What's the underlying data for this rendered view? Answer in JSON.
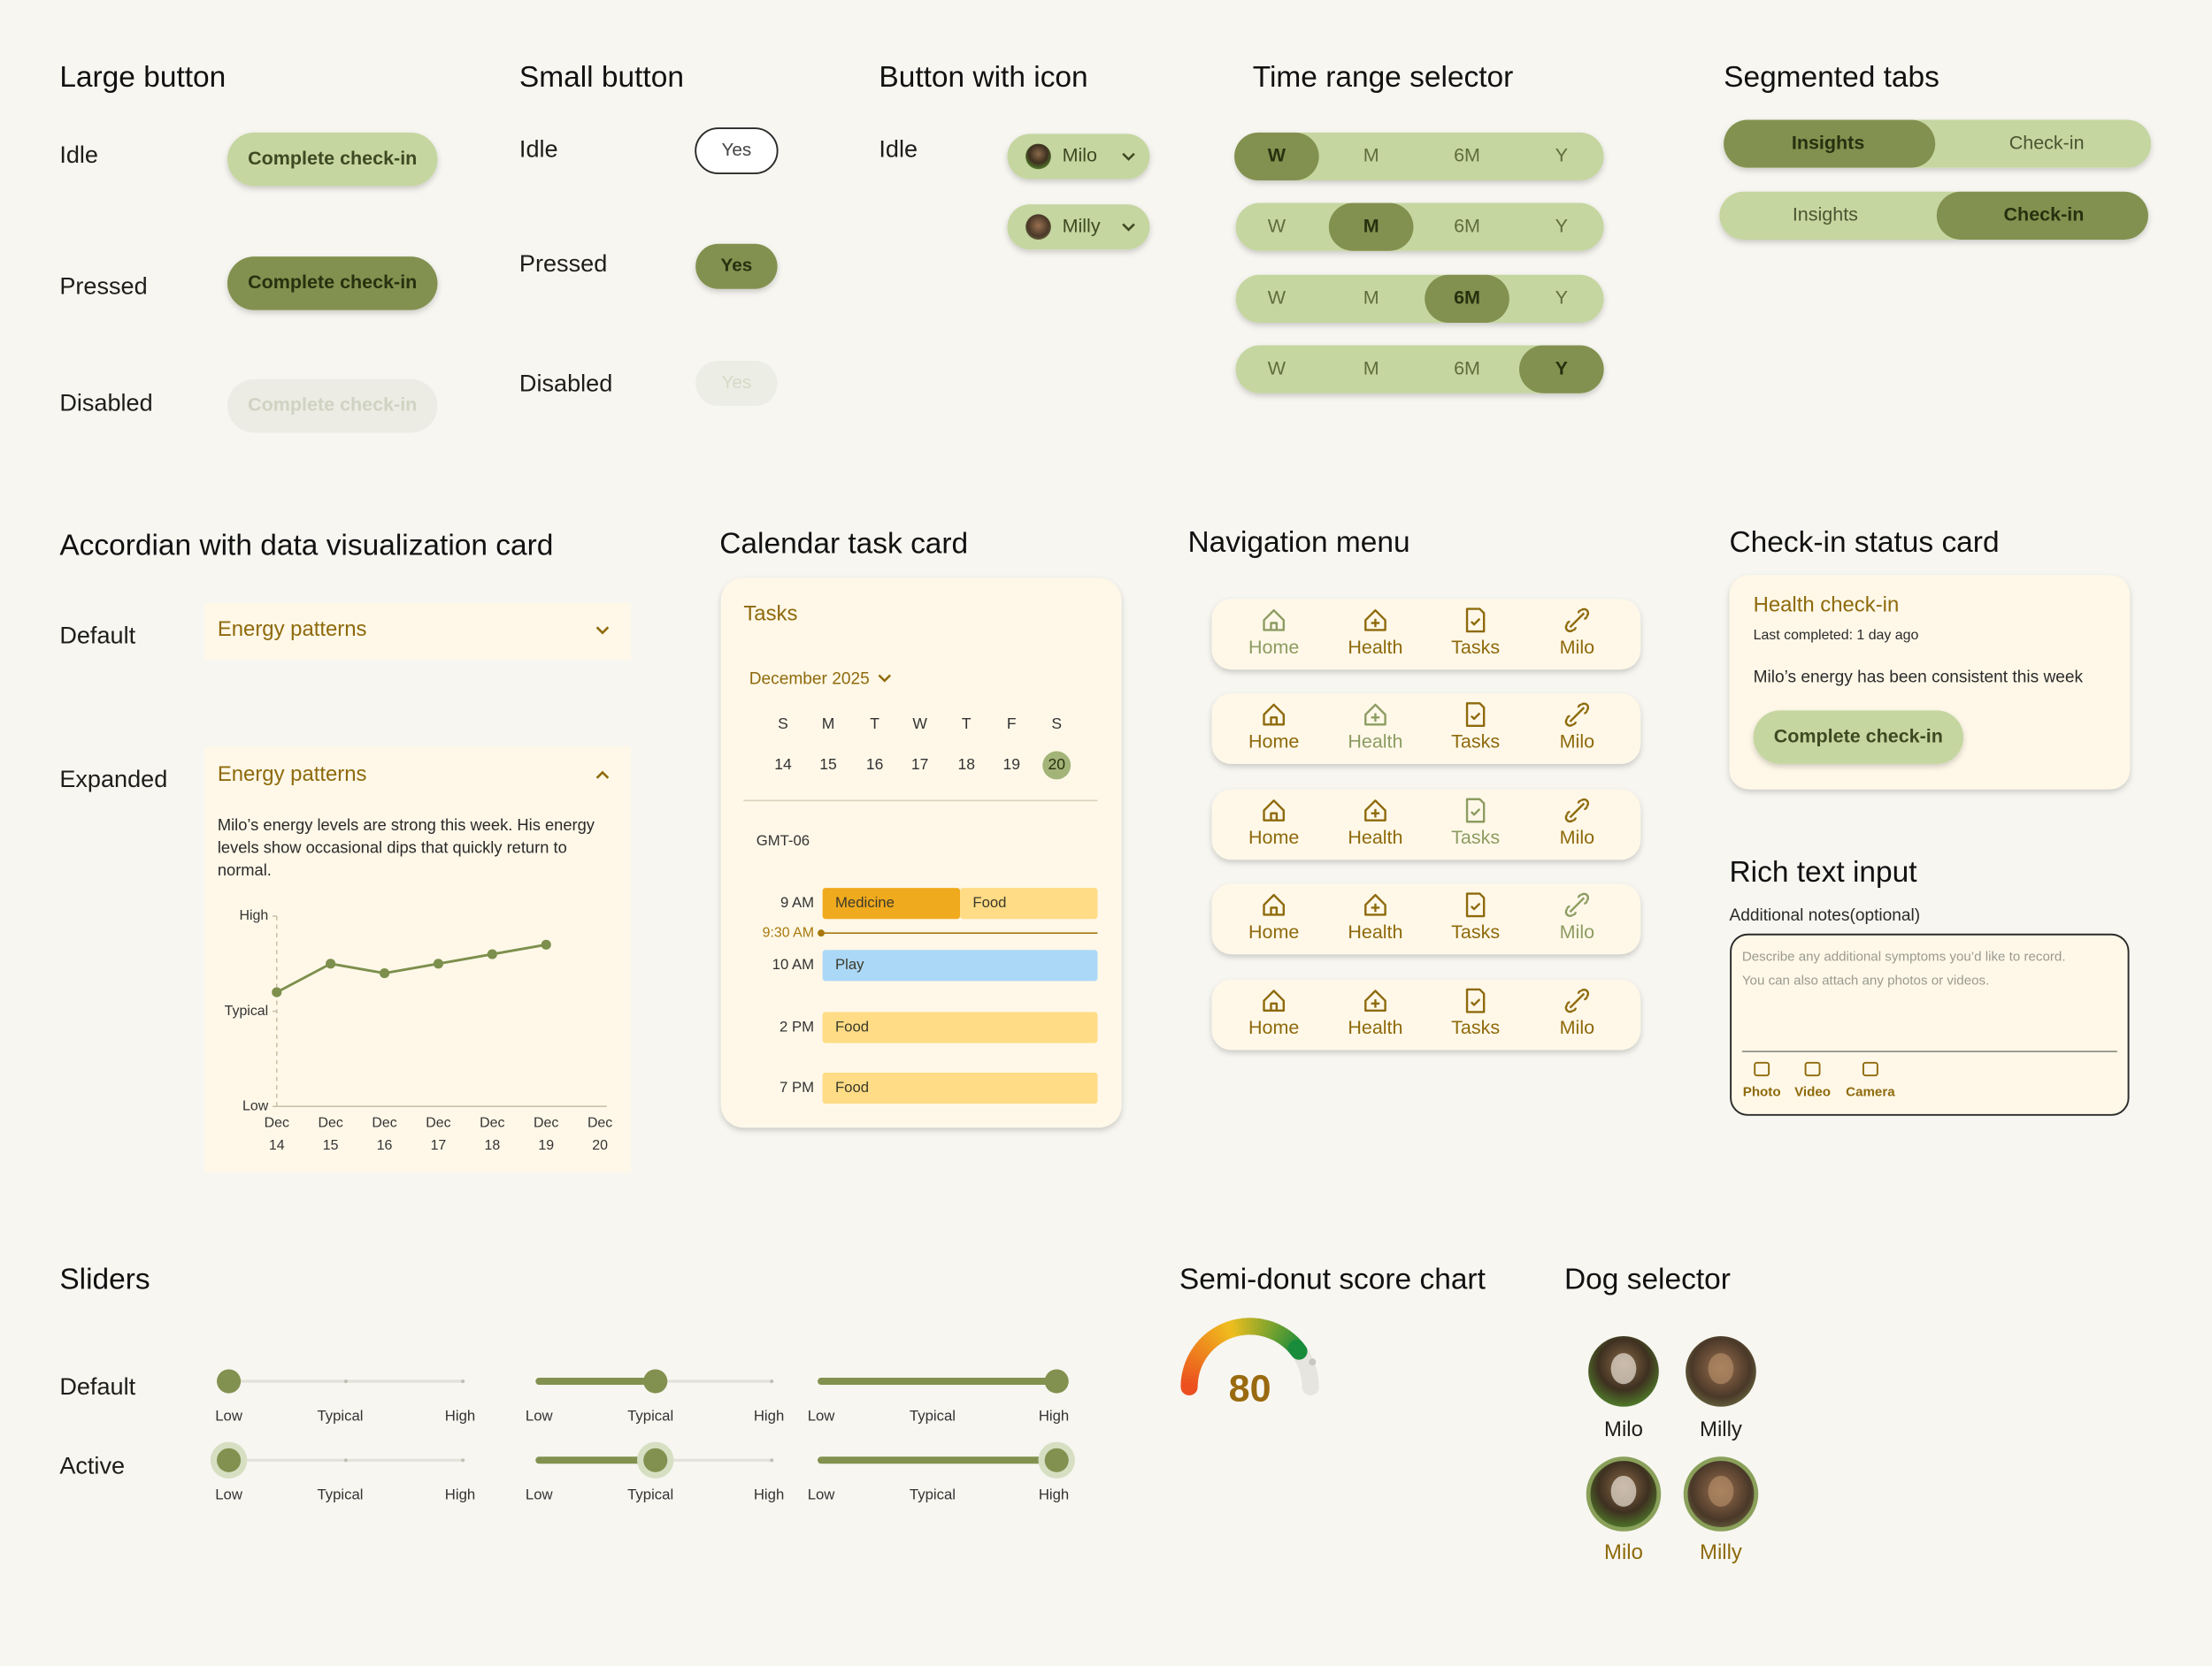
{
  "large_button": {
    "title": "Large button",
    "rows": [
      {
        "state": "Idle",
        "button": "Complete check-in"
      },
      {
        "state": "Pressed",
        "button": "Complete check-in"
      },
      {
        "state": "Disabled",
        "button": "Complete check-in"
      }
    ]
  },
  "small_button": {
    "title": "Small button",
    "rows": [
      {
        "state": "Idle",
        "button": "Yes"
      },
      {
        "state": "Pressed",
        "button": "Yes"
      },
      {
        "state": "Disabled",
        "button": "Yes"
      }
    ]
  },
  "icon_button": {
    "title": "Button with icon",
    "state": "Idle",
    "buttons": [
      "Milo",
      "Milly"
    ]
  },
  "time_range": {
    "title": "Time range selector",
    "rows": [
      {
        "options": [
          "W",
          "M",
          "6M",
          "Y"
        ],
        "selected": 0
      },
      {
        "options": [
          "W",
          "M",
          "6M",
          "Y"
        ],
        "selected": 1
      },
      {
        "options": [
          "W",
          "M",
          "6M",
          "Y"
        ],
        "selected": 2
      },
      {
        "options": [
          "W",
          "M",
          "6M",
          "Y"
        ],
        "selected": 3
      }
    ]
  },
  "segmented_tabs": {
    "title": "Segmented tabs",
    "rows": [
      {
        "options": [
          "Insights",
          "Check-in"
        ],
        "selected": 0
      },
      {
        "options": [
          "Insights",
          "Check-in"
        ],
        "selected": 1
      }
    ]
  },
  "accordion": {
    "title": "Accordian with data visualization card",
    "default": {
      "state": "Default",
      "header": "Energy patterns"
    },
    "expanded": {
      "state": "Expanded",
      "header": "Energy patterns",
      "description": [
        "Milo’s energy levels are strong this week. His energy",
        "levels show occasional dips that quickly return to",
        "normal."
      ],
      "chart": {
        "type": "line",
        "color": "#7d8f4c",
        "x_labels": [
          {
            "month": "Dec",
            "day": 14
          },
          {
            "month": "Dec",
            "day": 15
          },
          {
            "month": "Dec",
            "day": 16
          },
          {
            "month": "Dec",
            "day": 17
          },
          {
            "month": "Dec",
            "day": 18
          },
          {
            "month": "Dec",
            "day": 19
          },
          {
            "month": "Dec",
            "day": 20
          }
        ],
        "values": [
          1.2,
          1.5,
          1.4,
          1.5,
          1.6,
          1.7,
          null
        ],
        "ylim": [
          0,
          2
        ],
        "yticks": [
          {
            "value": 0,
            "label": "Low"
          },
          {
            "value": 1,
            "label": "Typical"
          },
          {
            "value": 2,
            "label": "High"
          }
        ]
      }
    }
  },
  "calendar": {
    "title": "Calendar task card",
    "card_title": "Tasks",
    "month": "December 2025",
    "weekdays": [
      "S",
      "M",
      "T",
      "W",
      "T",
      "F",
      "S"
    ],
    "days": [
      14,
      15,
      16,
      17,
      18,
      19,
      20
    ],
    "selected_day": 6,
    "timezone": "GMT-06",
    "current_time": "9:30 AM",
    "slots": [
      {
        "time": "9 AM",
        "tasks": [
          {
            "name": "Medicine",
            "color": "#f0aa1e"
          },
          {
            "name": "Food",
            "color": "#ffdc85"
          }
        ]
      },
      {
        "time": "10 AM",
        "tasks": [
          {
            "name": "Play",
            "color": "#acd8f7"
          }
        ]
      },
      {
        "time": "2 PM",
        "tasks": [
          {
            "name": "Food",
            "color": "#ffdc85"
          }
        ]
      },
      {
        "time": "7 PM",
        "tasks": [
          {
            "name": "Food",
            "color": "#ffdc85"
          }
        ]
      }
    ]
  },
  "navigation": {
    "title": "Navigation menu",
    "rows": [
      {
        "items": [
          "Home",
          "Health",
          "Tasks",
          "Milo"
        ],
        "active": 0
      },
      {
        "items": [
          "Home",
          "Health",
          "Tasks",
          "Milo"
        ],
        "active": 1
      },
      {
        "items": [
          "Home",
          "Health",
          "Tasks",
          "Milo"
        ],
        "active": 2
      },
      {
        "items": [
          "Home",
          "Health",
          "Tasks",
          "Milo"
        ],
        "active": 3
      },
      {
        "items": [
          "Home",
          "Health",
          "Tasks",
          "Milo"
        ],
        "active": null
      }
    ]
  },
  "checkin_card": {
    "title": "Check-in status card",
    "card_title": "Health check-in",
    "subtitle": "Last completed: 1 day ago",
    "message": "Milo’s energy has been consistent this week",
    "button": "Complete check-in"
  },
  "rich_text": {
    "title": "Rich text input",
    "label": "Additional notes(optional)",
    "placeholder": [
      "Describe any additional symptoms you’d like to record.",
      "You can also attach any photos or videos."
    ],
    "attachments": [
      "Photo",
      "Video",
      "Camera"
    ]
  },
  "sliders": {
    "title": "Sliders",
    "range": [
      0,
      2
    ],
    "rows": [
      {
        "state": "Default",
        "sliders": [
          {
            "labels": [
              "Low",
              "Typical",
              "High"
            ],
            "value": 0
          },
          {
            "labels": [
              "Low",
              "Typical",
              "High"
            ],
            "value": 1
          },
          {
            "labels": [
              "Low",
              "Typical",
              "High"
            ],
            "value": 2
          }
        ]
      },
      {
        "state": "Active",
        "sliders": [
          {
            "labels": [
              "Low",
              "Typical",
              "High"
            ],
            "value": 0
          },
          {
            "labels": [
              "Low",
              "Typical",
              "High"
            ],
            "value": 1
          },
          {
            "labels": [
              "Low",
              "Typical",
              "High"
            ],
            "value": 2
          }
        ]
      }
    ]
  },
  "semi_donut": {
    "title": "Semi-donut score chart",
    "type": "gauge",
    "value": 80,
    "range": [
      0,
      100
    ]
  },
  "dog_selector": {
    "title": "Dog selector",
    "rows": [
      {
        "dogs": [
          "Milo",
          "Milly"
        ],
        "selected": false
      },
      {
        "dogs": [
          "Milo",
          "Milly"
        ],
        "selected": true
      }
    ]
  }
}
